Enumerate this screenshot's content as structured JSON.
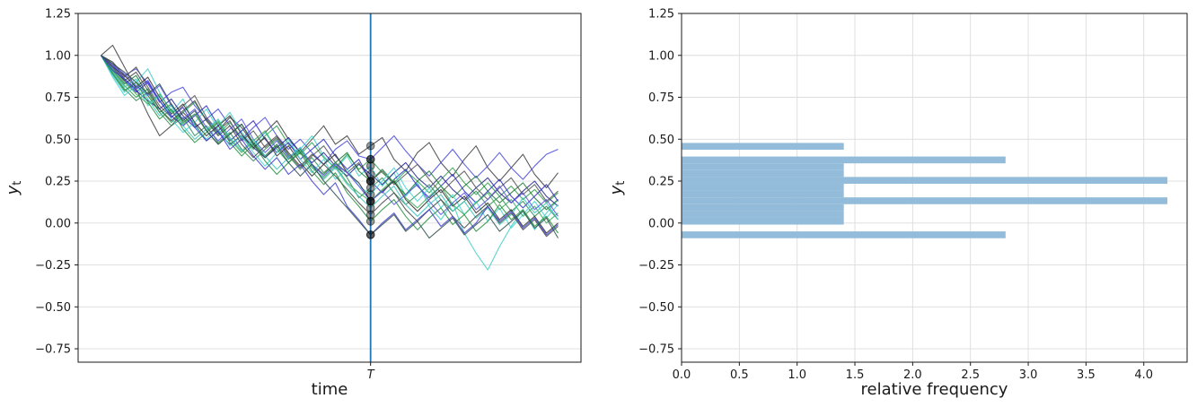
{
  "figure": {
    "background": "#ffffff",
    "grid_color": "#dcdcdc",
    "spine_color": "#1a1a1a"
  },
  "chart_data": [
    {
      "id": "trajectories",
      "type": "line",
      "xlabel": "time",
      "ylabel": {
        "base": "y",
        "sub": "t"
      },
      "xlim": [
        -1.95,
        40.95
      ],
      "ylim": [
        -0.83,
        1.25
      ],
      "grid": "y",
      "yticks": {
        "values": [
          1.25,
          1.0,
          0.75,
          0.5,
          0.25,
          0.0,
          -0.25,
          -0.5,
          -0.75
        ],
        "labels": [
          "1.25",
          "1.00",
          "0.75",
          "0.50",
          "0.25",
          "0.00",
          "−0.25",
          "−0.50",
          "−0.75"
        ]
      },
      "xticks": {
        "values": [
          23
        ],
        "labels": [
          "T"
        ]
      },
      "vline": {
        "x": 23,
        "color": "#1f77b4",
        "width": 1.8
      },
      "scatter_at_T": {
        "x": 23,
        "color": "#000000",
        "opacity": 0.38,
        "values": [
          0.46,
          0.38,
          0.38,
          0.34,
          0.29,
          0.25,
          0.25,
          0.25,
          0.21,
          0.17,
          0.13,
          0.13,
          0.13,
          0.09,
          0.05,
          0.01,
          -0.07,
          -0.07
        ]
      },
      "series": [
        {
          "color": "#3d3d3d",
          "y": [
            1.0,
            1.06,
            0.93,
            0.8,
            0.65,
            0.52,
            0.58,
            0.66,
            0.59,
            0.49,
            0.55,
            0.63,
            0.57,
            0.47,
            0.54,
            0.61,
            0.5,
            0.42,
            0.5,
            0.58,
            0.47,
            0.52,
            0.41,
            0.46,
            0.51,
            0.38,
            0.31,
            0.42,
            0.48,
            0.36,
            0.28,
            0.38,
            0.46,
            0.33,
            0.25,
            0.33,
            0.41,
            0.29,
            0.21,
            0.3
          ]
        },
        {
          "color": "#4646e0",
          "y": [
            1.0,
            0.93,
            0.88,
            0.92,
            0.83,
            0.72,
            0.78,
            0.81,
            0.7,
            0.62,
            0.68,
            0.58,
            0.5,
            0.57,
            0.63,
            0.52,
            0.44,
            0.5,
            0.42,
            0.35,
            0.44,
            0.49,
            0.4,
            0.38,
            0.45,
            0.52,
            0.43,
            0.35,
            0.28,
            0.36,
            0.44,
            0.35,
            0.27,
            0.34,
            0.42,
            0.33,
            0.26,
            0.34,
            0.41,
            0.44
          ]
        },
        {
          "color": "#2f9e4f",
          "y": [
            1.0,
            0.9,
            0.82,
            0.75,
            0.8,
            0.68,
            0.6,
            0.66,
            0.72,
            0.61,
            0.53,
            0.6,
            0.51,
            0.44,
            0.52,
            0.58,
            0.47,
            0.41,
            0.48,
            0.39,
            0.33,
            0.41,
            0.32,
            0.38,
            0.3,
            0.24,
            0.31,
            0.25,
            0.18,
            0.26,
            0.33,
            0.24,
            0.17,
            0.24,
            0.16,
            0.22,
            0.14,
            0.2,
            0.12,
            0.18
          ]
        },
        {
          "color": "#40cfc4",
          "y": [
            1.0,
            0.88,
            0.78,
            0.84,
            0.92,
            0.78,
            0.66,
            0.74,
            0.58,
            0.5,
            0.58,
            0.66,
            0.54,
            0.46,
            0.54,
            0.44,
            0.36,
            0.44,
            0.52,
            0.4,
            0.32,
            0.4,
            0.28,
            0.34,
            0.22,
            0.3,
            0.16,
            0.24,
            0.1,
            0.02,
            0.12,
            -0.06,
            -0.18,
            -0.28,
            -0.14,
            -0.02,
            0.08,
            -0.04,
            0.06,
            0.14
          ]
        },
        {
          "color": "#23238f",
          "y": [
            1.0,
            0.94,
            0.86,
            0.79,
            0.73,
            0.68,
            0.74,
            0.64,
            0.57,
            0.62,
            0.54,
            0.47,
            0.52,
            0.45,
            0.39,
            0.45,
            0.51,
            0.42,
            0.36,
            0.42,
            0.34,
            0.28,
            0.35,
            0.29,
            0.23,
            0.3,
            0.36,
            0.27,
            0.21,
            0.28,
            0.2,
            0.14,
            0.21,
            0.27,
            0.18,
            0.12,
            0.19,
            0.25,
            0.16,
            0.1
          ]
        },
        {
          "color": "#1d7a35",
          "y": [
            1.0,
            0.91,
            0.83,
            0.88,
            0.76,
            0.66,
            0.71,
            0.6,
            0.65,
            0.55,
            0.47,
            0.53,
            0.59,
            0.48,
            0.4,
            0.47,
            0.38,
            0.44,
            0.35,
            0.29,
            0.36,
            0.42,
            0.31,
            0.25,
            0.32,
            0.24,
            0.17,
            0.25,
            0.31,
            0.22,
            0.15,
            0.22,
            0.28,
            0.19,
            0.12,
            0.18,
            0.24,
            0.15,
            0.08,
            0.14
          ]
        },
        {
          "color": "#555555",
          "y": [
            1.0,
            0.95,
            0.87,
            0.93,
            0.81,
            0.7,
            0.63,
            0.7,
            0.76,
            0.63,
            0.55,
            0.61,
            0.49,
            0.55,
            0.45,
            0.51,
            0.41,
            0.33,
            0.4,
            0.46,
            0.36,
            0.3,
            0.36,
            0.25,
            0.31,
            0.23,
            0.29,
            0.35,
            0.26,
            0.18,
            0.25,
            0.31,
            0.21,
            0.14,
            0.21,
            0.27,
            0.17,
            0.23,
            0.13,
            0.19
          ]
        },
        {
          "color": "#2b2bc4",
          "y": [
            1.0,
            0.92,
            0.85,
            0.78,
            0.84,
            0.73,
            0.64,
            0.58,
            0.64,
            0.7,
            0.58,
            0.49,
            0.55,
            0.61,
            0.5,
            0.42,
            0.48,
            0.38,
            0.44,
            0.5,
            0.4,
            0.32,
            0.38,
            0.25,
            0.18,
            0.26,
            0.32,
            0.22,
            0.15,
            0.22,
            0.29,
            0.19,
            0.12,
            0.19,
            0.26,
            0.16,
            0.09,
            0.16,
            0.23,
            0.13
          ]
        },
        {
          "color": "#2e8b57",
          "y": [
            1.0,
            0.89,
            0.8,
            0.73,
            0.78,
            0.66,
            0.58,
            0.63,
            0.52,
            0.58,
            0.48,
            0.54,
            0.44,
            0.37,
            0.44,
            0.5,
            0.4,
            0.32,
            0.39,
            0.3,
            0.36,
            0.27,
            0.15,
            0.21,
            0.27,
            0.18,
            0.11,
            0.17,
            0.23,
            0.14,
            0.07,
            0.13,
            0.19,
            0.1,
            0.16,
            0.07,
            0.13,
            0.04,
            0.1,
            0.02
          ]
        },
        {
          "color": "#45d4d4",
          "y": [
            1.0,
            0.87,
            0.76,
            0.82,
            0.7,
            0.76,
            0.62,
            0.54,
            0.6,
            0.68,
            0.56,
            0.46,
            0.52,
            0.42,
            0.34,
            0.42,
            0.5,
            0.38,
            0.3,
            0.38,
            0.26,
            0.32,
            0.22,
            0.17,
            0.25,
            0.33,
            0.21,
            0.13,
            0.21,
            0.09,
            0.17,
            0.05,
            0.13,
            0.01,
            0.09,
            -0.03,
            0.05,
            0.13,
            0.03,
            0.11
          ]
        },
        {
          "color": "#303030",
          "y": [
            1.0,
            0.96,
            0.88,
            0.81,
            0.87,
            0.75,
            0.65,
            0.71,
            0.6,
            0.52,
            0.58,
            0.64,
            0.53,
            0.45,
            0.51,
            0.4,
            0.46,
            0.36,
            0.28,
            0.35,
            0.41,
            0.3,
            0.24,
            0.13,
            0.19,
            0.25,
            0.14,
            0.07,
            0.14,
            0.2,
            0.1,
            0.16,
            0.06,
            0.12,
            0.02,
            0.08,
            -0.02,
            0.04,
            -0.06,
            0.0
          ]
        },
        {
          "color": "#3cab5a",
          "y": [
            1.0,
            0.92,
            0.84,
            0.77,
            0.71,
            0.77,
            0.67,
            0.59,
            0.65,
            0.55,
            0.61,
            0.5,
            0.42,
            0.49,
            0.55,
            0.44,
            0.36,
            0.43,
            0.33,
            0.27,
            0.34,
            0.24,
            0.18,
            0.13,
            0.2,
            0.26,
            0.15,
            0.09,
            0.16,
            0.22,
            0.11,
            0.05,
            0.12,
            0.18,
            0.08,
            0.14,
            0.04,
            0.1,
            0.0,
            0.06
          ]
        },
        {
          "color": "#5a55e8",
          "y": [
            1.0,
            0.94,
            0.89,
            0.82,
            0.76,
            0.82,
            0.7,
            0.62,
            0.68,
            0.57,
            0.49,
            0.56,
            0.62,
            0.5,
            0.42,
            0.49,
            0.39,
            0.45,
            0.35,
            0.28,
            0.35,
            0.3,
            0.22,
            0.13,
            0.19,
            0.11,
            0.17,
            0.23,
            0.13,
            0.05,
            0.12,
            0.18,
            0.08,
            0.14,
            0.22,
            0.12,
            0.18,
            0.08,
            0.14,
            0.04
          ]
        },
        {
          "color": "#3bc4bd",
          "y": [
            1.0,
            0.9,
            0.81,
            0.86,
            0.74,
            0.64,
            0.7,
            0.58,
            0.5,
            0.56,
            0.62,
            0.51,
            0.43,
            0.5,
            0.4,
            0.32,
            0.39,
            0.45,
            0.34,
            0.26,
            0.33,
            0.23,
            0.16,
            0.09,
            0.16,
            0.22,
            0.11,
            0.04,
            0.11,
            0.17,
            0.07,
            0.13,
            0.03,
            0.09,
            -0.01,
            0.05,
            0.15,
            0.06,
            0.12,
            0.02
          ]
        },
        {
          "color": "#474747",
          "y": [
            1.0,
            0.93,
            0.85,
            0.9,
            0.79,
            0.68,
            0.61,
            0.67,
            0.73,
            0.61,
            0.52,
            0.58,
            0.47,
            0.39,
            0.46,
            0.52,
            0.42,
            0.34,
            0.41,
            0.35,
            0.28,
            0.2,
            0.12,
            0.05,
            0.12,
            0.18,
            0.08,
            0.01,
            0.08,
            0.14,
            0.04,
            -0.03,
            0.04,
            0.1,
            0.0,
            0.06,
            -0.04,
            0.02,
            -0.08,
            -0.02
          ]
        },
        {
          "color": "#27903f",
          "y": [
            1.0,
            0.89,
            0.79,
            0.84,
            0.72,
            0.62,
            0.68,
            0.56,
            0.48,
            0.54,
            0.6,
            0.48,
            0.4,
            0.47,
            0.37,
            0.29,
            0.36,
            0.42,
            0.31,
            0.23,
            0.3,
            0.18,
            0.1,
            0.01,
            0.08,
            0.14,
            0.04,
            -0.04,
            0.03,
            0.09,
            -0.01,
            0.05,
            -0.05,
            0.01,
            0.11,
            0.02,
            0.08,
            -0.02,
            0.04,
            -0.06
          ]
        },
        {
          "color": "#4040d0",
          "y": [
            1.0,
            0.91,
            0.86,
            0.8,
            0.85,
            0.73,
            0.63,
            0.69,
            0.57,
            0.49,
            0.55,
            0.44,
            0.5,
            0.4,
            0.32,
            0.39,
            0.29,
            0.35,
            0.25,
            0.17,
            0.24,
            0.1,
            0.02,
            -0.07,
            0.0,
            0.06,
            -0.04,
            0.02,
            0.08,
            -0.02,
            0.04,
            -0.06,
            0.0,
            0.1,
            0.01,
            0.07,
            -0.03,
            0.03,
            -0.07,
            -0.01
          ]
        },
        {
          "color": "#2f4f4f",
          "y": [
            1.0,
            0.95,
            0.9,
            0.84,
            0.77,
            0.83,
            0.71,
            0.61,
            0.67,
            0.55,
            0.47,
            0.53,
            0.59,
            0.47,
            0.39,
            0.46,
            0.36,
            0.28,
            0.35,
            0.25,
            0.17,
            0.09,
            0.01,
            -0.07,
            -0.01,
            0.05,
            -0.05,
            0.01,
            -0.09,
            -0.03,
            0.03,
            -0.07,
            -0.01,
            0.05,
            -0.05,
            0.01,
            0.07,
            -0.03,
            0.03,
            -0.09
          ]
        }
      ]
    },
    {
      "id": "histogram",
      "type": "bar",
      "orientation": "horizontal",
      "xlabel": "relative frequency",
      "ylabel": {
        "base": "y",
        "sub": "t"
      },
      "xlim": [
        0,
        4.375
      ],
      "ylim": [
        -0.83,
        1.25
      ],
      "grid": "both",
      "bar_color": "#92bcd9",
      "bin_height": 0.0406,
      "xticks": {
        "values": [
          0.0,
          0.5,
          1.0,
          1.5,
          2.0,
          2.5,
          3.0,
          3.5,
          4.0
        ],
        "labels": [
          "0.0",
          "0.5",
          "1.0",
          "1.5",
          "2.0",
          "2.5",
          "3.0",
          "3.5",
          "4.0"
        ]
      },
      "yticks": {
        "values": [
          1.25,
          1.0,
          0.75,
          0.5,
          0.25,
          0.0,
          -0.25,
          -0.5,
          -0.75
        ],
        "labels": [
          "1.25",
          "1.00",
          "0.75",
          "0.50",
          "0.25",
          "0.00",
          "−0.25",
          "−0.50",
          "−0.75"
        ]
      },
      "bars": [
        {
          "y": 0.4575,
          "value": 1.4
        },
        {
          "y": 0.3763,
          "value": 2.8
        },
        {
          "y": 0.3357,
          "value": 1.4
        },
        {
          "y": 0.2951,
          "value": 1.4
        },
        {
          "y": 0.2545,
          "value": 4.2
        },
        {
          "y": 0.2139,
          "value": 1.4
        },
        {
          "y": 0.1733,
          "value": 1.4
        },
        {
          "y": 0.1327,
          "value": 4.2
        },
        {
          "y": 0.0921,
          "value": 1.4
        },
        {
          "y": 0.0515,
          "value": 1.4
        },
        {
          "y": 0.0109,
          "value": 1.4
        },
        {
          "y": -0.0703,
          "value": 2.8
        }
      ]
    }
  ]
}
